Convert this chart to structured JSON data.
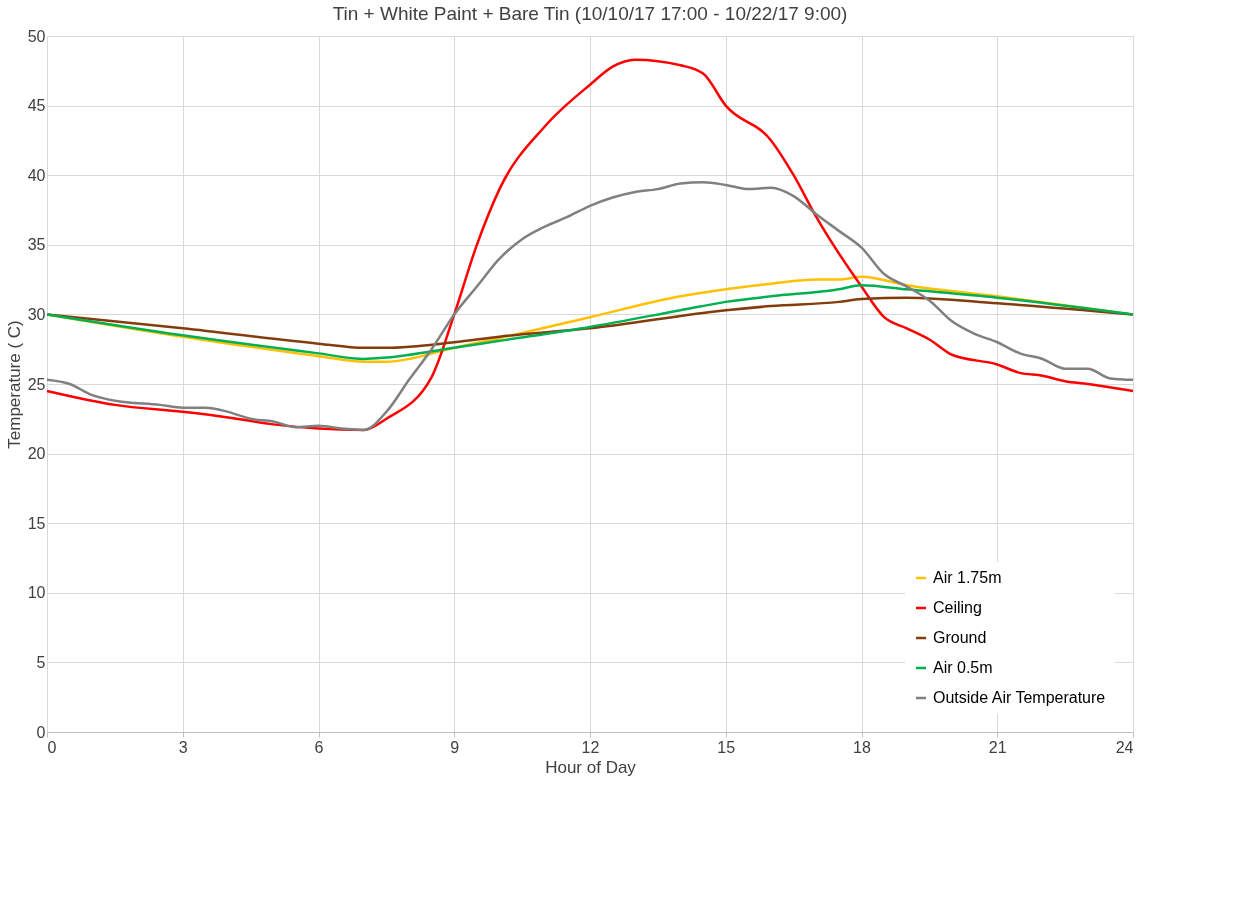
{
  "chart_data": {
    "type": "line",
    "title": "Tin + White Paint + Bare Tin (10/10/17 17:00 - 10/22/17 9:00)",
    "xlabel": "Hour of Day",
    "ylabel": "Temperature ( C)",
    "xlim": [
      0,
      24
    ],
    "xticks": [
      0,
      3,
      6,
      9,
      12,
      15,
      18,
      21,
      24
    ],
    "ylim": [
      0,
      50
    ],
    "yticks": [
      0,
      5,
      10,
      15,
      20,
      25,
      30,
      35,
      40,
      45,
      50
    ],
    "grid": true,
    "legend": "bottom right",
    "marker": "none",
    "line_style": "solid",
    "series": [
      {
        "name": "Air 1.75m",
        "color": "#ffc000",
        "x": [
          0,
          3,
          6,
          7,
          7.5,
          9,
          10,
          12,
          14,
          15,
          16,
          17,
          17.5,
          18,
          19,
          21,
          24
        ],
        "values": [
          30,
          28.4,
          27,
          26.6,
          26.6,
          27.6,
          28.3,
          29.8,
          31.3,
          31.8,
          32.2,
          32.5,
          32.5,
          32.7,
          32.1,
          31.3,
          30
        ]
      },
      {
        "name": "Ceiling",
        "color": "#ff0000",
        "x": [
          0,
          1.5,
          3,
          4,
          5,
          6,
          7,
          7.5,
          8.5,
          9,
          9.5,
          10,
          11,
          12,
          12.5,
          13,
          14,
          14.5,
          15,
          16,
          16.5,
          17,
          18,
          18.5,
          19,
          19.5,
          20,
          21,
          21.5,
          22,
          22.5,
          23,
          24
        ],
        "values": [
          24.5,
          23.5,
          23,
          22.6,
          22.1,
          21.8,
          21.7,
          22.5,
          25.5,
          30,
          35,
          39,
          43.5,
          46.5,
          47.8,
          48.3,
          47.9,
          47.3,
          45,
          42.5,
          40,
          37,
          32,
          29.8,
          29,
          28.2,
          27.1,
          26.4,
          25.8,
          25.6,
          25.2,
          25,
          24.5
        ]
      },
      {
        "name": "Ground",
        "color": "#843c0c",
        "x": [
          0,
          3,
          6,
          7,
          7.5,
          9,
          10,
          12,
          15,
          16,
          17.5,
          18,
          19,
          21,
          24
        ],
        "values": [
          30,
          29,
          27.9,
          27.6,
          27.6,
          28,
          28.4,
          29,
          30.3,
          30.6,
          30.9,
          31.1,
          31.2,
          30.8,
          30
        ]
      },
      {
        "name": "Air 0.5m",
        "color": "#00b050",
        "x": [
          0,
          3,
          6,
          7,
          7.5,
          9,
          10,
          12,
          14,
          15,
          16,
          17.5,
          18,
          19,
          21,
          24
        ],
        "values": [
          30,
          28.5,
          27.2,
          26.8,
          26.9,
          27.6,
          28.1,
          29.1,
          30.3,
          30.9,
          31.3,
          31.8,
          32.1,
          31.8,
          31.2,
          30
        ]
      },
      {
        "name": "Outside Air Temperature",
        "color": "#808080",
        "x": [
          0,
          0.5,
          1,
          1.5,
          2.5,
          3,
          3.5,
          4,
          4.5,
          5,
          5.5,
          6,
          6.5,
          7,
          7.5,
          8,
          8.5,
          9,
          9.5,
          10,
          10.5,
          11,
          11.5,
          12,
          12.5,
          13,
          13.5,
          14,
          14.5,
          15,
          15.5,
          16,
          16.5,
          17,
          17.5,
          18,
          18.5,
          19,
          19.5,
          20,
          20.5,
          21,
          21.5,
          22,
          22.5,
          23,
          23.5,
          24
        ],
        "values": [
          25.3,
          25,
          24.2,
          23.8,
          23.5,
          23.3,
          23.3,
          23,
          22.5,
          22.3,
          21.9,
          22,
          21.8,
          21.7,
          23,
          25.3,
          27.5,
          30,
          32,
          34,
          35.4,
          36.3,
          37,
          37.8,
          38.4,
          38.8,
          39,
          39.4,
          39.5,
          39.3,
          39,
          39.1,
          38.5,
          37.2,
          36,
          34.8,
          32.9,
          32,
          31,
          29.5,
          28.6,
          28,
          27.2,
          26.8,
          26.1,
          26.1,
          25.4,
          25.3
        ]
      }
    ]
  }
}
